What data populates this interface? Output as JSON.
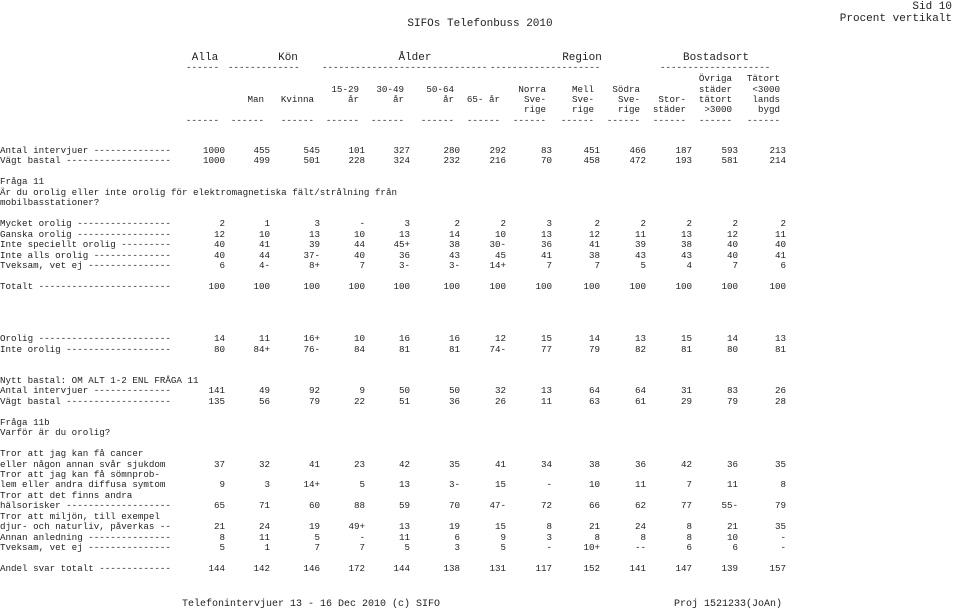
{
  "header": {
    "title": "SIFOs Telefonbuss 2010",
    "page": "Sid 10",
    "percent": "Procent vertikalt"
  },
  "footer": {
    "left": "Telefonintervjuer 13 - 16 Dec 2010 (c) SIFO",
    "right": "Proj 1521233(JoAn)"
  },
  "groups": [
    {
      "label": "Alla",
      "underline": "------"
    },
    {
      "label": "Kön",
      "underline": "-------------"
    },
    {
      "label": "Ålder",
      "underline": "------------------------------"
    },
    {
      "label": "Region",
      "underline": "--------------------"
    },
    {
      "label": "Bostadsort",
      "underline": "--------------------"
    }
  ],
  "columns": [
    {
      "h": [
        "",
        "",
        "",
        ""
      ]
    },
    {
      "h": [
        "",
        "",
        "Man",
        ""
      ]
    },
    {
      "h": [
        "",
        "",
        "Kvinna",
        ""
      ]
    },
    {
      "h": [
        "",
        "15-29",
        "år",
        ""
      ]
    },
    {
      "h": [
        "",
        "30-49",
        "år",
        ""
      ]
    },
    {
      "h": [
        "",
        "50-64",
        "år",
        ""
      ]
    },
    {
      "h": [
        "",
        "",
        "65- år",
        ""
      ]
    },
    {
      "h": [
        "",
        "Norra",
        "Sve-",
        "rige"
      ]
    },
    {
      "h": [
        "",
        "Mell",
        "Sve-",
        "rige"
      ]
    },
    {
      "h": [
        "",
        "Södra",
        "Sve-",
        "rige"
      ]
    },
    {
      "h": [
        "",
        "",
        "Stor-",
        "städer"
      ]
    },
    {
      "h": [
        "Övriga",
        "städer",
        "tätort",
        ">3000"
      ]
    },
    {
      "h": [
        "Tätort",
        "<3000",
        "lands",
        "bygd"
      ]
    }
  ],
  "dashes": "------",
  "rows": [
    {
      "type": "data",
      "label": "Antal intervjuer --------------",
      "v": [
        "1000",
        "455",
        "545",
        "101",
        "327",
        "280",
        "292",
        "83",
        "451",
        "466",
        "187",
        "593",
        "213"
      ]
    },
    {
      "type": "data",
      "label": "Vägt bastal -------------------",
      "v": [
        "1000",
        "499",
        "501",
        "228",
        "324",
        "232",
        "216",
        "70",
        "458",
        "472",
        "193",
        "581",
        "214"
      ]
    },
    {
      "type": "blank"
    },
    {
      "type": "text",
      "label": "Fråga 11"
    },
    {
      "type": "text",
      "label": "Är du orolig eller inte orolig för elektromagnetiska fält/strålning från"
    },
    {
      "type": "text",
      "label": "mobilbasstationer?"
    },
    {
      "type": "blank"
    },
    {
      "type": "data",
      "label": "Mycket orolig -----------------",
      "v": [
        "2",
        "1",
        "3",
        "-",
        "3",
        "2",
        "2",
        "3",
        "2",
        "2",
        "2",
        "2",
        "2"
      ]
    },
    {
      "type": "data",
      "label": "Ganska orolig -----------------",
      "v": [
        "12",
        "10",
        "13",
        "10",
        "13",
        "14",
        "10",
        "13",
        "12",
        "11",
        "13",
        "12",
        "11"
      ]
    },
    {
      "type": "data",
      "label": "Inte speciellt orolig ---------",
      "v": [
        "40",
        "41",
        "39",
        "44",
        "45+",
        "38",
        "30-",
        "36",
        "41",
        "39",
        "38",
        "40",
        "40"
      ]
    },
    {
      "type": "data",
      "label": "Inte alls orolig --------------",
      "v": [
        "40",
        "44",
        "37-",
        "40",
        "36",
        "43",
        "45",
        "41",
        "38",
        "43",
        "43",
        "40",
        "41"
      ]
    },
    {
      "type": "data",
      "label": "Tveksam, vet ej ---------------",
      "v": [
        "6",
        "4-",
        "8+",
        "7",
        "3-",
        "3-",
        "14+",
        "7",
        "7",
        "5",
        "4",
        "7",
        "6"
      ]
    },
    {
      "type": "blank"
    },
    {
      "type": "data",
      "label": "Totalt ------------------------",
      "v": [
        "100",
        "100",
        "100",
        "100",
        "100",
        "100",
        "100",
        "100",
        "100",
        "100",
        "100",
        "100",
        "100"
      ]
    },
    {
      "type": "blank"
    },
    {
      "type": "blank"
    },
    {
      "type": "blank"
    },
    {
      "type": "blank"
    },
    {
      "type": "data",
      "label": "Orolig ------------------------",
      "v": [
        "14",
        "11",
        "16+",
        "10",
        "16",
        "16",
        "12",
        "15",
        "14",
        "13",
        "15",
        "14",
        "13"
      ]
    },
    {
      "type": "data",
      "label": "Inte orolig -------------------",
      "v": [
        "80",
        "84+",
        "76-",
        "84",
        "81",
        "81",
        "74-",
        "77",
        "79",
        "82",
        "81",
        "80",
        "81"
      ]
    },
    {
      "type": "blank"
    },
    {
      "type": "blank"
    },
    {
      "type": "text",
      "label": "Nytt bastal: OM ALT 1-2 ENL FRÅGA 11"
    },
    {
      "type": "data",
      "label": "Antal intervjuer --------------",
      "v": [
        "141",
        "49",
        "92",
        "9",
        "50",
        "50",
        "32",
        "13",
        "64",
        "64",
        "31",
        "83",
        "26"
      ]
    },
    {
      "type": "data",
      "label": "Vägt bastal -------------------",
      "v": [
        "135",
        "56",
        "79",
        "22",
        "51",
        "36",
        "26",
        "11",
        "63",
        "61",
        "29",
        "79",
        "28"
      ]
    },
    {
      "type": "blank"
    },
    {
      "type": "text",
      "label": "Fråga 11b"
    },
    {
      "type": "text",
      "label": "Varför är du orolig?"
    },
    {
      "type": "blank"
    },
    {
      "type": "text",
      "label": "Tror att jag kan få cancer"
    },
    {
      "type": "data",
      "label": "eller någon annan svår sjukdom",
      "v": [
        "37",
        "32",
        "41",
        "23",
        "42",
        "35",
        "41",
        "34",
        "38",
        "36",
        "42",
        "36",
        "35"
      ]
    },
    {
      "type": "text",
      "label": "Tror att jag kan få sömnprob-"
    },
    {
      "type": "data",
      "label": "lem eller andra diffusa symtom",
      "v": [
        "9",
        "3",
        "14+",
        "5",
        "13",
        "3-",
        "15",
        "-",
        "10",
        "11",
        "7",
        "11",
        "8"
      ]
    },
    {
      "type": "text",
      "label": "Tror att det finns andra"
    },
    {
      "type": "data",
      "label": "hälsorisker -------------------",
      "v": [
        "65",
        "71",
        "60",
        "88",
        "59",
        "70",
        "47-",
        "72",
        "66",
        "62",
        "77",
        "55-",
        "79"
      ]
    },
    {
      "type": "text",
      "label": "Tror att miljön, till exempel"
    },
    {
      "type": "data",
      "label": "djur- och naturliv, påverkas --",
      "v": [
        "21",
        "24",
        "19",
        "49+",
        "13",
        "19",
        "15",
        "8",
        "21",
        "24",
        "8",
        "21",
        "35"
      ]
    },
    {
      "type": "data",
      "label": "Annan anledning ---------------",
      "v": [
        "8",
        "11",
        "5",
        "-",
        "11",
        "6",
        "9",
        "3",
        "8",
        "8",
        "8",
        "10",
        "-"
      ]
    },
    {
      "type": "data",
      "label": "Tveksam, vet ej ---------------",
      "v": [
        "5",
        "1",
        "7",
        "7",
        "5",
        "3",
        "5",
        "-",
        "10+",
        "--",
        "6",
        "6",
        "-"
      ]
    },
    {
      "type": "blank"
    },
    {
      "type": "data",
      "label": "Andel svar totalt -------------",
      "v": [
        "144",
        "142",
        "146",
        "172",
        "144",
        "138",
        "131",
        "117",
        "152",
        "141",
        "147",
        "139",
        "157"
      ]
    }
  ]
}
